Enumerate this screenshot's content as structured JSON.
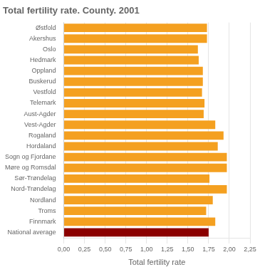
{
  "chart_data": {
    "type": "bar",
    "orientation": "horizontal",
    "title": "Total fertility rate. County. 2001",
    "xlabel": "Total fertility rate",
    "categories": [
      "Østfold",
      "Akershus",
      "Oslo",
      "Hedmark",
      "Oppland",
      "Buskerud",
      "Vestfold",
      "Telemark",
      "Aust-Agder",
      "Vest-Agder",
      "Rogaland",
      "Hordaland",
      "Sogn og Fjordane",
      "Møre og Romsdal",
      "Sør-Trøndelag",
      "Nord-Trøndelag",
      "Nordland",
      "Troms",
      "Finnmark",
      "National average"
    ],
    "values": [
      1.73,
      1.73,
      1.62,
      1.63,
      1.68,
      1.68,
      1.67,
      1.7,
      1.69,
      1.83,
      1.93,
      1.86,
      1.97,
      1.97,
      1.76,
      1.97,
      1.8,
      1.72,
      1.83,
      1.75
    ],
    "colors": [
      "#F4A020",
      "#F4A020",
      "#F4A020",
      "#F4A020",
      "#F4A020",
      "#F4A020",
      "#F4A020",
      "#F4A020",
      "#F4A020",
      "#F4A020",
      "#F4A020",
      "#F4A020",
      "#F4A020",
      "#F4A020",
      "#F4A020",
      "#F4A020",
      "#F4A020",
      "#F4A020",
      "#F4A020",
      "#8B0000"
    ],
    "xlim": [
      0,
      2.25
    ],
    "xticks": [
      {
        "value": 0.0,
        "label": "0,00"
      },
      {
        "value": 0.25,
        "label": "0,25"
      },
      {
        "value": 0.5,
        "label": "0,50"
      },
      {
        "value": 0.75,
        "label": "0,75"
      },
      {
        "value": 1.0,
        "label": "1,00"
      },
      {
        "value": 1.25,
        "label": "1,25"
      },
      {
        "value": 1.5,
        "label": "1,50"
      },
      {
        "value": 1.75,
        "label": "1,75"
      },
      {
        "value": 2.0,
        "label": "2,00"
      },
      {
        "value": 2.25,
        "label": "2,25"
      }
    ],
    "grid": true
  }
}
